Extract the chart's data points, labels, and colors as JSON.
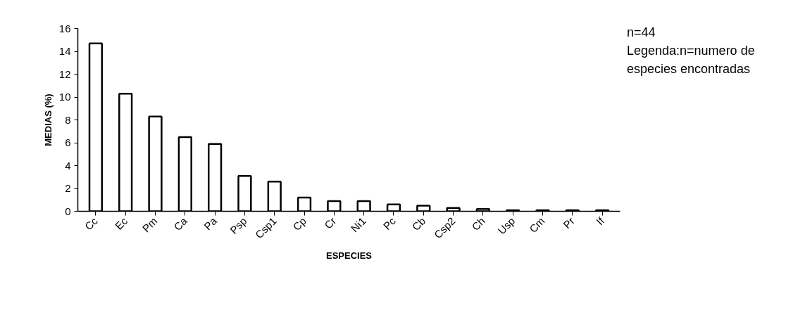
{
  "chart_data": {
    "type": "bar",
    "xlabel": "ESPECIES",
    "ylabel": "MEDIAS (%)",
    "categories": [
      "Cc",
      "Ec",
      "Pm",
      "Ca",
      "Pa",
      "Psp",
      "Csp1",
      "Cp",
      "Cr",
      "Ni1",
      "Pc",
      "Cb",
      "Csp2",
      "Ch",
      "Usp",
      "Cm",
      "Pr",
      "If"
    ],
    "values": [
      14.7,
      10.3,
      8.3,
      6.5,
      5.9,
      3.1,
      2.6,
      1.2,
      0.9,
      0.9,
      0.6,
      0.5,
      0.3,
      0.2,
      0.1,
      0.1,
      0.1,
      0.1
    ],
    "color": "#ffffff",
    "ylim": [
      0,
      16
    ],
    "yticks": [
      0,
      2,
      4,
      6,
      8,
      10,
      12,
      14,
      16
    ],
    "grid": false,
    "annotations": [
      "n=44",
      "Legenda:n=numero de",
      "especies encontradas"
    ]
  }
}
